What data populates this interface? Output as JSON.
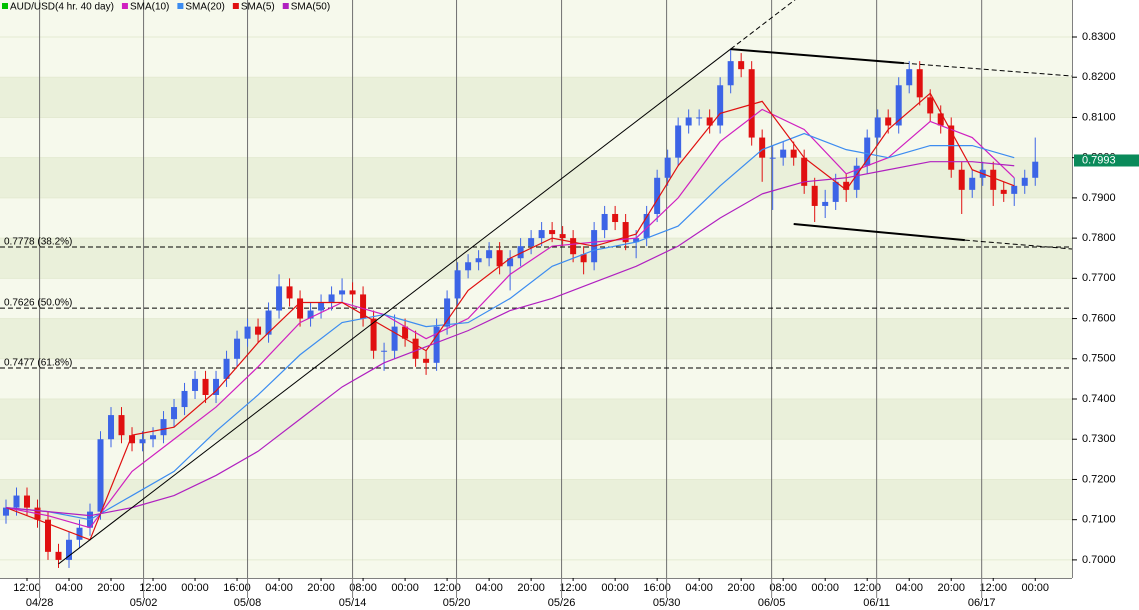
{
  "chart_data": {
    "type": "candlestick",
    "title": "AUD/USD(4 hr. 40 day)",
    "title_color": "#00c000",
    "up_color": "#3c64e6",
    "down_color": "#e01010",
    "open": [
      0.711,
      0.713,
      0.716,
      0.713,
      0.71,
      0.702,
      0.7,
      0.705,
      0.708,
      0.712,
      0.73,
      0.736,
      0.731,
      0.729,
      0.73,
      0.731,
      0.735,
      0.738,
      0.742,
      0.745,
      0.741,
      0.745,
      0.75,
      0.755,
      0.758,
      0.756,
      0.762,
      0.768,
      0.765,
      0.76,
      0.762,
      0.764,
      0.766,
      0.767,
      0.766,
      0.76,
      0.752,
      0.752,
      0.758,
      0.755,
      0.75,
      0.749,
      0.758,
      0.765,
      0.772,
      0.774,
      0.775,
      0.777,
      0.773,
      0.775,
      0.778,
      0.78,
      0.782,
      0.781,
      0.78,
      0.776,
      0.774,
      0.782,
      0.786,
      0.784,
      0.779,
      0.78,
      0.786,
      0.795,
      0.8,
      0.808,
      0.81,
      0.81,
      0.808,
      0.818,
      0.824,
      0.822,
      0.805,
      0.8,
      0.8,
      0.802,
      0.8,
      0.793,
      0.788,
      0.789,
      0.794,
      0.792,
      0.798,
      0.805,
      0.81,
      0.808,
      0.818,
      0.822,
      0.815,
      0.811,
      0.808,
      0.797,
      0.792,
      0.795,
      0.797,
      0.792,
      0.791,
      0.793,
      0.795
    ],
    "high": [
      0.715,
      0.718,
      0.718,
      0.715,
      0.712,
      0.704,
      0.707,
      0.71,
      0.714,
      0.732,
      0.738,
      0.738,
      0.733,
      0.732,
      0.733,
      0.737,
      0.74,
      0.744,
      0.747,
      0.747,
      0.747,
      0.752,
      0.757,
      0.76,
      0.76,
      0.764,
      0.771,
      0.77,
      0.767,
      0.764,
      0.766,
      0.768,
      0.77,
      0.769,
      0.768,
      0.762,
      0.754,
      0.761,
      0.76,
      0.757,
      0.752,
      0.76,
      0.767,
      0.774,
      0.776,
      0.777,
      0.779,
      0.779,
      0.777,
      0.78,
      0.782,
      0.784,
      0.784,
      0.783,
      0.782,
      0.778,
      0.784,
      0.788,
      0.788,
      0.786,
      0.782,
      0.788,
      0.797,
      0.802,
      0.81,
      0.812,
      0.812,
      0.812,
      0.82,
      0.827,
      0.826,
      0.824,
      0.807,
      0.803,
      0.804,
      0.804,
      0.802,
      0.795,
      0.792,
      0.796,
      0.796,
      0.8,
      0.807,
      0.812,
      0.812,
      0.82,
      0.824,
      0.824,
      0.817,
      0.813,
      0.81,
      0.799,
      0.797,
      0.799,
      0.799,
      0.794,
      0.795,
      0.797,
      0.805
    ],
    "low": [
      0.709,
      0.711,
      0.711,
      0.708,
      0.7,
      0.698,
      0.698,
      0.703,
      0.706,
      0.71,
      0.728,
      0.729,
      0.727,
      0.727,
      0.728,
      0.729,
      0.733,
      0.736,
      0.74,
      0.739,
      0.739,
      0.743,
      0.748,
      0.753,
      0.754,
      0.754,
      0.76,
      0.763,
      0.758,
      0.758,
      0.76,
      0.762,
      0.764,
      0.764,
      0.758,
      0.75,
      0.747,
      0.75,
      0.753,
      0.748,
      0.746,
      0.747,
      0.756,
      0.763,
      0.77,
      0.772,
      0.773,
      0.771,
      0.767,
      0.773,
      0.776,
      0.778,
      0.779,
      0.778,
      0.774,
      0.771,
      0.772,
      0.78,
      0.782,
      0.777,
      0.775,
      0.778,
      0.784,
      0.793,
      0.798,
      0.806,
      0.808,
      0.806,
      0.806,
      0.816,
      0.82,
      0.803,
      0.794,
      0.787,
      0.798,
      0.798,
      0.791,
      0.784,
      0.785,
      0.787,
      0.789,
      0.79,
      0.796,
      0.803,
      0.806,
      0.806,
      0.816,
      0.813,
      0.809,
      0.806,
      0.795,
      0.786,
      0.79,
      0.793,
      0.788,
      0.789,
      0.788,
      0.791,
      0.793
    ],
    "close": [
      0.713,
      0.716,
      0.713,
      0.71,
      0.702,
      0.7,
      0.705,
      0.708,
      0.712,
      0.73,
      0.736,
      0.731,
      0.729,
      0.73,
      0.731,
      0.735,
      0.738,
      0.742,
      0.745,
      0.741,
      0.745,
      0.75,
      0.755,
      0.758,
      0.756,
      0.762,
      0.768,
      0.765,
      0.76,
      0.762,
      0.764,
      0.766,
      0.767,
      0.766,
      0.76,
      0.752,
      0.752,
      0.758,
      0.755,
      0.75,
      0.749,
      0.758,
      0.765,
      0.772,
      0.774,
      0.775,
      0.777,
      0.773,
      0.775,
      0.778,
      0.78,
      0.782,
      0.781,
      0.78,
      0.776,
      0.774,
      0.782,
      0.786,
      0.784,
      0.779,
      0.78,
      0.786,
      0.795,
      0.8,
      0.808,
      0.81,
      0.81,
      0.808,
      0.818,
      0.824,
      0.822,
      0.805,
      0.8,
      0.8,
      0.802,
      0.8,
      0.793,
      0.788,
      0.789,
      0.794,
      0.792,
      0.798,
      0.805,
      0.81,
      0.808,
      0.818,
      0.822,
      0.815,
      0.811,
      0.808,
      0.797,
      0.792,
      0.795,
      0.797,
      0.792,
      0.791,
      0.793,
      0.795,
      0.799
    ],
    "series": [
      {
        "name": "SMA(10)",
        "color": "#d020c0",
        "x": [
          0,
          4,
          8,
          12,
          16,
          20,
          24,
          28,
          32,
          36,
          40,
          44,
          48,
          52,
          56,
          60,
          64,
          68,
          72,
          76,
          80,
          84,
          88,
          92,
          96
        ],
        "values": [
          0.713,
          0.711,
          0.708,
          0.722,
          0.73,
          0.738,
          0.748,
          0.759,
          0.764,
          0.761,
          0.755,
          0.76,
          0.771,
          0.778,
          0.779,
          0.78,
          0.79,
          0.804,
          0.812,
          0.807,
          0.796,
          0.8,
          0.809,
          0.805,
          0.795
        ]
      },
      {
        "name": "SMA(20)",
        "color": "#3c8cf0",
        "x": [
          0,
          4,
          8,
          12,
          16,
          20,
          24,
          28,
          32,
          36,
          40,
          44,
          48,
          52,
          56,
          60,
          64,
          68,
          72,
          76,
          80,
          84,
          88,
          92,
          96
        ],
        "values": [
          0.713,
          0.712,
          0.71,
          0.716,
          0.722,
          0.732,
          0.741,
          0.751,
          0.759,
          0.761,
          0.758,
          0.759,
          0.765,
          0.773,
          0.777,
          0.779,
          0.783,
          0.793,
          0.802,
          0.806,
          0.802,
          0.8,
          0.803,
          0.803,
          0.8
        ]
      },
      {
        "name": "SMA(5)",
        "color": "#e01010",
        "x": [
          0,
          4,
          8,
          12,
          16,
          20,
          24,
          28,
          32,
          36,
          40,
          44,
          48,
          52,
          56,
          60,
          64,
          68,
          72,
          76,
          80,
          84,
          88,
          92,
          96
        ],
        "values": [
          0.713,
          0.709,
          0.705,
          0.731,
          0.733,
          0.742,
          0.754,
          0.764,
          0.764,
          0.758,
          0.752,
          0.767,
          0.775,
          0.78,
          0.778,
          0.781,
          0.798,
          0.811,
          0.814,
          0.8,
          0.792,
          0.807,
          0.816,
          0.797,
          0.793
        ]
      },
      {
        "name": "SMA(50)",
        "color": "#b020c0",
        "x": [
          0,
          4,
          8,
          12,
          16,
          20,
          24,
          28,
          32,
          36,
          40,
          44,
          48,
          52,
          56,
          60,
          64,
          68,
          72,
          76,
          80,
          84,
          88,
          92,
          96
        ],
        "values": [
          0.713,
          0.712,
          0.711,
          0.713,
          0.716,
          0.721,
          0.727,
          0.735,
          0.743,
          0.749,
          0.753,
          0.757,
          0.762,
          0.765,
          0.769,
          0.773,
          0.778,
          0.785,
          0.791,
          0.794,
          0.795,
          0.797,
          0.799,
          0.799,
          0.798
        ]
      }
    ],
    "levels": [
      {
        "value": 0.7778,
        "label": "0.7778 (38.2%)"
      },
      {
        "value": 0.7626,
        "label": "0.7626 (50.0%)"
      },
      {
        "value": 0.7477,
        "label": "0.7477 (61.8%)"
      }
    ],
    "trendlines": [
      {
        "x": [
          5,
          69
        ],
        "y": [
          0.699,
          0.827
        ],
        "dashed": false,
        "bold": false
      },
      {
        "x": [
          69,
          76
        ],
        "y": [
          0.827,
          0.841
        ],
        "dashed": true,
        "bold": false
      },
      {
        "x": [
          69,
          85.5
        ],
        "y": [
          0.827,
          0.8235
        ],
        "dashed": false,
        "bold": true
      },
      {
        "x": [
          85.5,
          101.5
        ],
        "y": [
          0.8235,
          0.8203
        ],
        "dashed": true,
        "bold": false
      },
      {
        "x": [
          75,
          91.3
        ],
        "y": [
          0.7835,
          0.7795
        ],
        "dashed": false,
        "bold": true
      },
      {
        "x": [
          91.3,
          101.5
        ],
        "y": [
          0.7795,
          0.7773
        ],
        "dashed": true,
        "bold": false
      }
    ],
    "last_price": {
      "value": 0.7993,
      "label": "0.7993"
    },
    "xlim": [
      -0.57,
      101.5
    ],
    "ylim": [
      0.6955,
      0.8392
    ],
    "yticks": [
      {
        "value": 0.7,
        "label": "0.7000"
      },
      {
        "value": 0.71,
        "label": "0.7100"
      },
      {
        "value": 0.72,
        "label": "0.7200"
      },
      {
        "value": 0.73,
        "label": "0.7300"
      },
      {
        "value": 0.74,
        "label": "0.7400"
      },
      {
        "value": 0.75,
        "label": "0.7500"
      },
      {
        "value": 0.76,
        "label": "0.7600"
      },
      {
        "value": 0.77,
        "label": "0.7700"
      },
      {
        "value": 0.78,
        "label": "0.7800"
      },
      {
        "value": 0.79,
        "label": "0.7900"
      },
      {
        "value": 0.8,
        "label": "0.8000"
      },
      {
        "value": 0.81,
        "label": "0.8100"
      },
      {
        "value": 0.82,
        "label": "0.8200"
      },
      {
        "value": 0.83,
        "label": "0.8300"
      }
    ],
    "xticks": [
      {
        "value": 2,
        "label": "12:00"
      },
      {
        "value": 6,
        "label": "04:00"
      },
      {
        "value": 10,
        "label": "20:00"
      },
      {
        "value": 14,
        "label": "12:00"
      },
      {
        "value": 18,
        "label": "00:00"
      },
      {
        "value": 22,
        "label": "16:00"
      },
      {
        "value": 26,
        "label": "04:00"
      },
      {
        "value": 30,
        "label": "20:00"
      },
      {
        "value": 34,
        "label": "08:00"
      },
      {
        "value": 38,
        "label": "00:00"
      },
      {
        "value": 42,
        "label": "12:00"
      },
      {
        "value": 46,
        "label": "04:00"
      },
      {
        "value": 50,
        "label": "20:00"
      },
      {
        "value": 54,
        "label": "12:00"
      },
      {
        "value": 58,
        "label": "00:00"
      },
      {
        "value": 62,
        "label": "16:00"
      },
      {
        "value": 66,
        "label": "04:00"
      },
      {
        "value": 70,
        "label": "20:00"
      },
      {
        "value": 74,
        "label": "08:00"
      },
      {
        "value": 78,
        "label": "00:00"
      },
      {
        "value": 82,
        "label": "12:00"
      },
      {
        "value": 86,
        "label": "04:00"
      },
      {
        "value": 90,
        "label": "20:00"
      },
      {
        "value": 94,
        "label": "12:00"
      },
      {
        "value": 98,
        "label": "00:00"
      }
    ],
    "date_ticks": [
      {
        "value": 3.2,
        "label": "04/28"
      },
      {
        "value": 13.1,
        "label": "05/02"
      },
      {
        "value": 23,
        "label": "05/08"
      },
      {
        "value": 33,
        "label": "05/14"
      },
      {
        "value": 42.9,
        "label": "05/20"
      },
      {
        "value": 52.9,
        "label": "05/26"
      },
      {
        "value": 62.9,
        "label": "05/30"
      },
      {
        "value": 72.9,
        "label": "06/05"
      },
      {
        "value": 82.9,
        "label": "06/11"
      },
      {
        "value": 92.9,
        "label": "06/17"
      }
    ]
  }
}
